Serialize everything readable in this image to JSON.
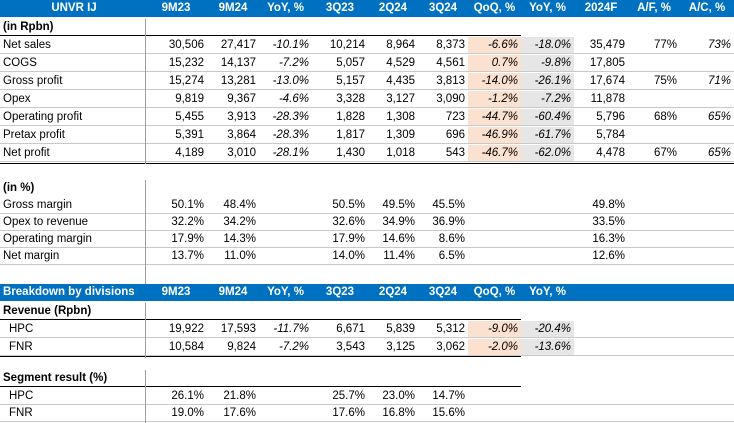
{
  "table1": {
    "headers": [
      "UNVR IJ",
      "9M23",
      "9M24",
      "YoY, %",
      "3Q23",
      "2Q24",
      "3Q24",
      "QoQ, %",
      "YoY, %",
      "2024F",
      "A/F, %",
      "A/C, %"
    ],
    "section": "(in Rpbn)",
    "rows": [
      {
        "label": "Net sales",
        "v": [
          "30,506",
          "27,417",
          "-10.1%",
          "10,214",
          "8,964",
          "8,373",
          "-6.6%",
          "-18.0%",
          "35,479",
          "77%",
          "73%"
        ]
      },
      {
        "label": "COGS",
        "v": [
          "15,232",
          "14,137",
          "-7.2%",
          "5,057",
          "4,529",
          "4,561",
          "0.7%",
          "-9.8%",
          "17,805",
          "",
          ""
        ]
      },
      {
        "label": "Gross profit",
        "v": [
          "15,274",
          "13,281",
          "-13.0%",
          "5,157",
          "4,435",
          "3,813",
          "-14.0%",
          "-26.1%",
          "17,674",
          "75%",
          "71%"
        ]
      },
      {
        "label": "Opex",
        "v": [
          "9,819",
          "9,367",
          "-4.6%",
          "3,328",
          "3,127",
          "3,090",
          "-1.2%",
          "-7.2%",
          "11,878",
          "",
          ""
        ]
      },
      {
        "label": "Operating profit",
        "v": [
          "5,455",
          "3,913",
          "-28.3%",
          "1,828",
          "1,308",
          "723",
          "-44.7%",
          "-60.4%",
          "5,796",
          "68%",
          "65%"
        ]
      },
      {
        "label": "Pretax profit",
        "v": [
          "5,391",
          "3,864",
          "-28.3%",
          "1,817",
          "1,309",
          "696",
          "-46.9%",
          "-61.7%",
          "5,784",
          "",
          ""
        ]
      },
      {
        "label": "Net profit",
        "v": [
          "4,189",
          "3,010",
          "-28.1%",
          "1,430",
          "1,018",
          "543",
          "-46.7%",
          "-62.0%",
          "4,478",
          "67%",
          "65%"
        ]
      }
    ]
  },
  "margins": {
    "section": "(in %)",
    "rows": [
      {
        "label": "Gross margin",
        "v": [
          "50.1%",
          "48.4%",
          "",
          "50.5%",
          "49.5%",
          "45.5%",
          "",
          "",
          "49.8%",
          "",
          ""
        ]
      },
      {
        "label": "Opex to revenue",
        "v": [
          "32.2%",
          "34.2%",
          "",
          "32.6%",
          "34.9%",
          "36.9%",
          "",
          "",
          "33.5%",
          "",
          ""
        ]
      },
      {
        "label": "Operating margin",
        "v": [
          "17.9%",
          "14.3%",
          "",
          "17.9%",
          "14.6%",
          "8.6%",
          "",
          "",
          "16.3%",
          "",
          ""
        ]
      },
      {
        "label": "Net margin",
        "v": [
          "13.7%",
          "11.0%",
          "",
          "14.0%",
          "11.4%",
          "6.5%",
          "",
          "",
          "12.6%",
          "",
          ""
        ]
      }
    ]
  },
  "divisions": {
    "headers": [
      "Breakdown by divisions",
      "9M23",
      "9M24",
      "YoY, %",
      "3Q23",
      "2Q24",
      "3Q24",
      "QoQ, %",
      "YoY, %",
      "",
      "",
      ""
    ],
    "revenue_section": "Revenue (Rpbn)",
    "revenue_rows": [
      {
        "label": "HPC",
        "v": [
          "19,922",
          "17,593",
          "-11.7%",
          "6,671",
          "5,839",
          "5,312",
          "-9.0%",
          "-20.4%",
          "",
          "",
          ""
        ]
      },
      {
        "label": "FNR",
        "v": [
          "10,584",
          "9,824",
          "-7.2%",
          "3,543",
          "3,125",
          "3,062",
          "-2.0%",
          "-13.6%",
          "",
          "",
          ""
        ]
      }
    ],
    "segment_section": "Segment result (%)",
    "segment_rows": [
      {
        "label": "HPC",
        "v": [
          "26.1%",
          "21.8%",
          "",
          "25.7%",
          "23.0%",
          "14.7%",
          "",
          "",
          "",
          "",
          ""
        ]
      },
      {
        "label": "FNR",
        "v": [
          "19.0%",
          "17.6%",
          "",
          "17.6%",
          "16.8%",
          "15.6%",
          "",
          "",
          "",
          "",
          ""
        ]
      }
    ]
  },
  "colors": {
    "header_bg": "#0070c0",
    "header_text": "#ffffff",
    "qoq_bg": "#fbe1d0",
    "yoy_bg": "#e6e6e6"
  }
}
